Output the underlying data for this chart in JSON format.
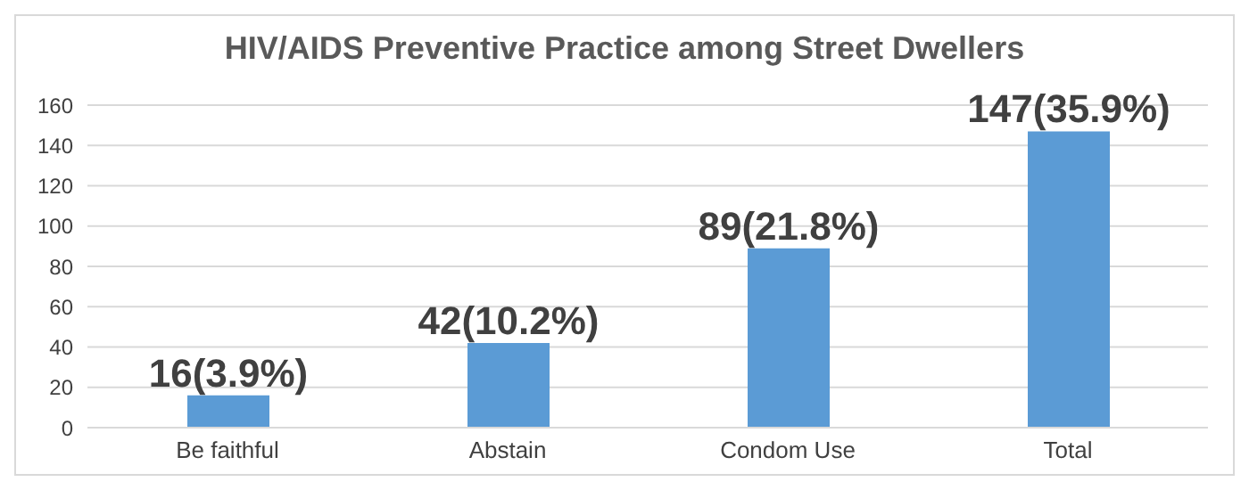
{
  "chart_data": {
    "type": "bar",
    "title": "HIV/AIDS Preventive Practice among Street Dwellers",
    "categories": [
      "Be faithful",
      "Abstain",
      "Condom Use",
      "Total"
    ],
    "values": [
      16,
      42,
      89,
      147
    ],
    "value_labels": [
      "16(3.9%)",
      "42(10.2%)",
      "89(21.8%)",
      "147(35.9%)"
    ],
    "color": "#5b9bd5",
    "ylim": [
      0,
      160
    ],
    "yticks": [
      0,
      20,
      40,
      60,
      80,
      100,
      120,
      140,
      160
    ],
    "grid": "y"
  }
}
